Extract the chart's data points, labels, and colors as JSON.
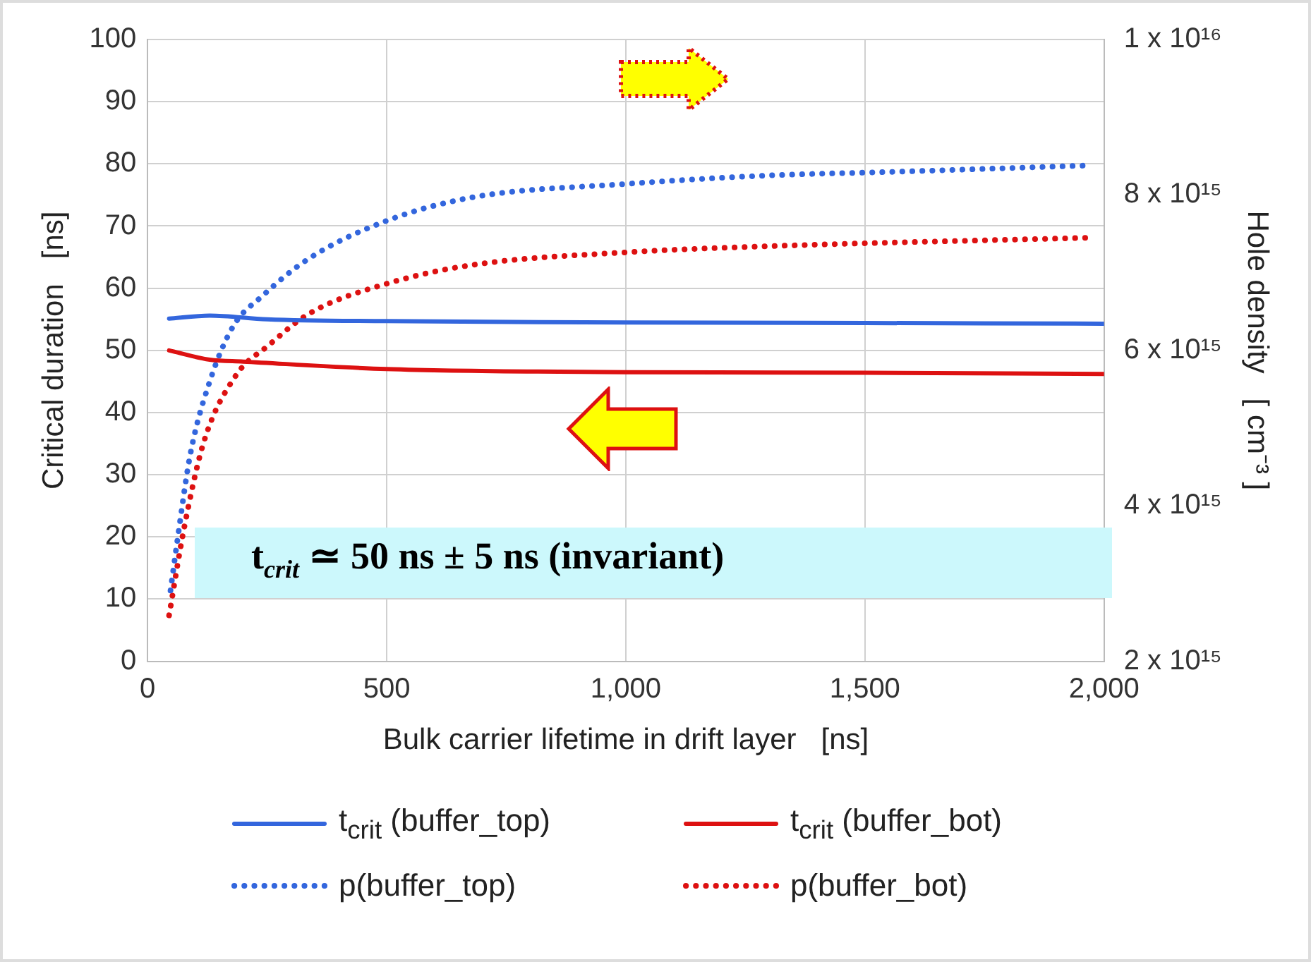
{
  "chart_data": {
    "type": "line",
    "xlabel": "Bulk carrier lifetime in drift layer   [ns]",
    "ylabel": "Critical duration   [ns]",
    "y2label": "Hole density   [ cm⁻³ ]",
    "xlim": [
      0,
      2000
    ],
    "xticks": [
      0,
      500,
      {
        "value": 1000,
        "label": "1,000"
      },
      {
        "value": 1500,
        "label": "1,500"
      },
      {
        "value": 2000,
        "label": "2,000"
      }
    ],
    "ylim": [
      0,
      100
    ],
    "yticks": [
      0,
      10,
      20,
      30,
      40,
      50,
      60,
      70,
      80,
      90,
      100
    ],
    "y2lim": [
      2000000000000000.0,
      1e+16
    ],
    "y2ticks": [
      {
        "value": 2000000000000000.0,
        "label": "2 x 10¹⁵"
      },
      {
        "value": 4000000000000000.0,
        "label": "4 x 10¹⁵"
      },
      {
        "value": 6000000000000000.0,
        "label": "6 x 10¹⁵"
      },
      {
        "value": 8000000000000000.0,
        "label": "8 x 10¹⁵"
      },
      {
        "value": 1e+16,
        "label": "1 x 10¹⁶"
      }
    ],
    "grid": true,
    "legend": "bottom",
    "marker": "none",
    "annotations": [
      "t$_{crit}$ ≃  50 ns ± 5 ns (invariant)"
    ],
    "series": [
      {
        "name": "t$_{crit}$ (buffer_top)",
        "color": "#3366dd",
        "line_style": "solid",
        "x": [
          45,
          130,
          250,
          500,
          1000,
          1500,
          2000
        ],
        "values": [
          55.1,
          55.6,
          55.0,
          54.7,
          54.5,
          54.4,
          54.3
        ]
      },
      {
        "name": "t$_{crit}$ (buffer_bot)",
        "color": "#dd1111",
        "line_style": "solid",
        "x": [
          45,
          130,
          200,
          500,
          1000,
          1500,
          2000
        ],
        "values": [
          50,
          48.5,
          48.2,
          47.0,
          46.5,
          46.4,
          46.2
        ]
      },
      {
        "name": "p(buffer_top)",
        "color": "#3366dd",
        "line_style": "dotted",
        "axis": "y2",
        "x": [
          48,
          62,
          89,
          130,
          179,
          240,
          337,
          501,
          680,
          996,
          1298,
          1573,
          1971
        ],
        "values": [
          2910000000000000.0,
          3540000000000000.0,
          4650000000000000.0,
          5600000000000000.0,
          6310000000000000.0,
          6700000000000000.0,
          7180000000000000.0,
          7670000000000000.0,
          7970000000000000.0,
          8140000000000000.0,
          8250000000000000.0,
          8300000000000000.0,
          8380000000000000.0
        ]
      },
      {
        "name": "p(buffer_bot)",
        "color": "#dd1111",
        "line_style": "dotted",
        "axis": "y2",
        "x": [
          45,
          76,
          117,
          185,
          254,
          337,
          501,
          680,
          996,
          1298,
          1971
        ],
        "values": [
          2590000000000000.0,
          3700000000000000.0,
          4810000000000000.0,
          5680000000000000.0,
          6070000000000000.0,
          6470000000000000.0,
          6860000000000000.0,
          7100000000000000.0,
          7260000000000000.0,
          7340000000000000.0,
          7450000000000000.0
        ]
      }
    ]
  }
}
